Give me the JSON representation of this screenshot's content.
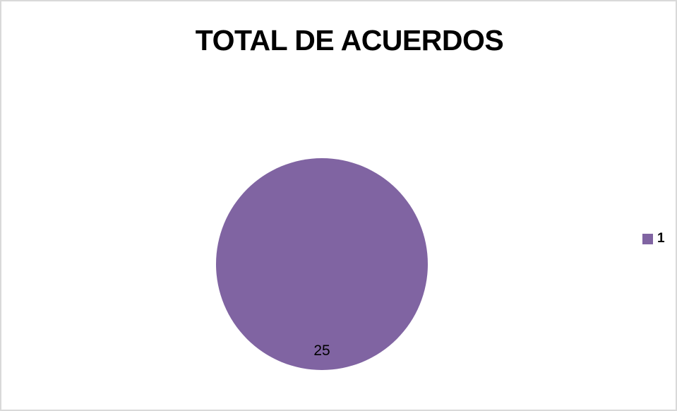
{
  "chart_data": {
    "type": "pie",
    "title": "TOTAL DE ACUERDOS",
    "categories": [
      "1"
    ],
    "values": [
      25
    ],
    "colors": [
      "#8064a2"
    ],
    "data_labels": [
      "25"
    ],
    "legend_position": "right"
  }
}
